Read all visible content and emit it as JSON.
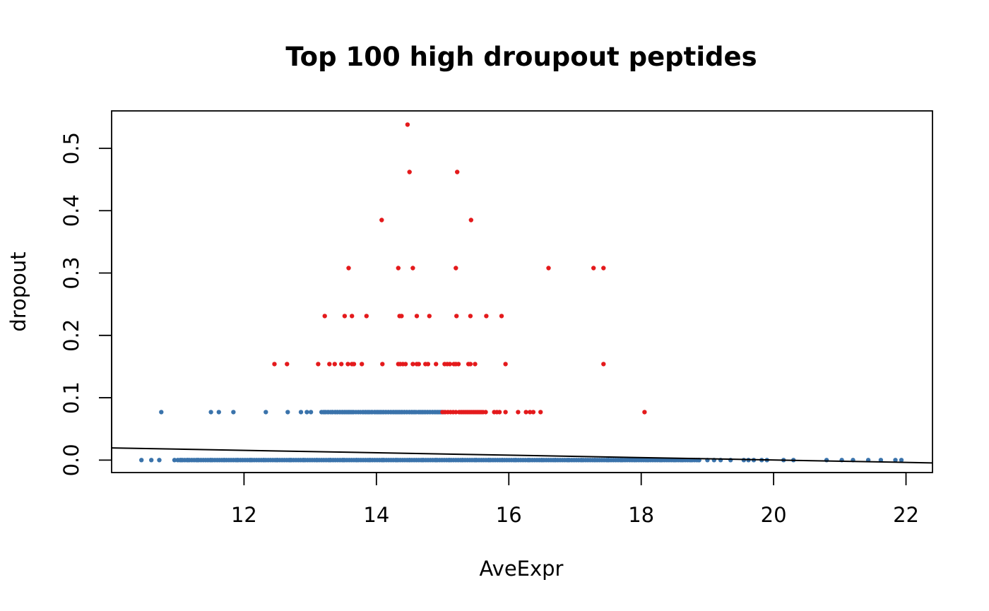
{
  "chart_data": {
    "type": "scatter",
    "title": "Top 100 high droupout peptides",
    "xlabel": "AveExpr",
    "ylabel": "dropout",
    "xlim": [
      10.0,
      22.4
    ],
    "ylim": [
      -0.02,
      0.56
    ],
    "xticks": [
      12,
      14,
      16,
      18,
      20,
      22
    ],
    "xtick_labels": [
      "12",
      "14",
      "16",
      "18",
      "20",
      "22"
    ],
    "yticks": [
      0.0,
      0.1,
      0.2,
      0.3,
      0.4,
      0.5
    ],
    "ytick_labels": [
      "0.0",
      "0.1",
      "0.2",
      "0.3",
      "0.4",
      "0.5"
    ],
    "grid": false,
    "colors": {
      "background": "#blue",
      "high": "#E41A1C",
      "low": "#3A73AB",
      "line": "#000000"
    },
    "trend_line": {
      "x": [
        10.0,
        22.4
      ],
      "y": [
        0.0195,
        -0.0045
      ]
    },
    "series": [
      {
        "color": "#E41A1C",
        "x": [
          14.47,
          14.5,
          15.22,
          14.08,
          15.43,
          13.58,
          14.33,
          14.55,
          15.2,
          16.6,
          17.28,
          17.43,
          13.22,
          13.52,
          13.63,
          13.85,
          14.35,
          14.38,
          14.61,
          14.8,
          15.21,
          15.42,
          15.66,
          15.89,
          12.46,
          12.65,
          13.12,
          13.29,
          13.37,
          13.47,
          13.57,
          13.63,
          13.66,
          13.78,
          14.09,
          14.33,
          14.36,
          14.4,
          14.44,
          14.55,
          14.61,
          14.64,
          14.74,
          14.78,
          14.9,
          15.03,
          15.07,
          15.11,
          15.17,
          15.2,
          15.24,
          15.39,
          15.42,
          15.49,
          15.95,
          17.43,
          15.0,
          15.04,
          15.08,
          15.12,
          15.16,
          15.2,
          15.25,
          15.28,
          15.31,
          15.34,
          15.37,
          15.4,
          15.43,
          15.46,
          15.49,
          15.52,
          15.55,
          15.58,
          15.61,
          15.65,
          15.78,
          15.82,
          15.86,
          15.95,
          16.14,
          16.26,
          16.32,
          16.37,
          16.48,
          18.05
        ],
        "y": [
          0.538,
          0.462,
          0.462,
          0.385,
          0.385,
          0.308,
          0.308,
          0.308,
          0.308,
          0.308,
          0.308,
          0.308,
          0.231,
          0.231,
          0.231,
          0.231,
          0.231,
          0.231,
          0.231,
          0.231,
          0.231,
          0.231,
          0.231,
          0.231,
          0.154,
          0.154,
          0.154,
          0.154,
          0.154,
          0.154,
          0.154,
          0.154,
          0.154,
          0.154,
          0.154,
          0.154,
          0.154,
          0.154,
          0.154,
          0.154,
          0.154,
          0.154,
          0.154,
          0.154,
          0.154,
          0.154,
          0.154,
          0.154,
          0.154,
          0.154,
          0.154,
          0.154,
          0.154,
          0.154,
          0.154,
          0.154,
          0.077,
          0.077,
          0.077,
          0.077,
          0.077,
          0.077,
          0.077,
          0.077,
          0.077,
          0.077,
          0.077,
          0.077,
          0.077,
          0.077,
          0.077,
          0.077,
          0.077,
          0.077,
          0.077,
          0.077,
          0.077,
          0.077,
          0.077,
          0.077,
          0.077,
          0.077,
          0.077,
          0.077,
          0.077,
          0.077
        ]
      },
      {
        "color": "#3A73AB",
        "x": [
          10.75,
          11.5,
          11.62,
          11.84,
          12.33,
          12.66,
          12.86,
          12.95,
          13.01,
          13.17,
          13.22,
          13.27,
          13.33,
          13.38,
          13.41,
          13.45,
          13.49,
          13.53,
          13.57,
          13.6,
          13.64,
          13.8,
          13.84,
          13.88,
          13.93,
          13.98,
          14.02,
          14.06,
          14.1,
          14.14,
          14.18,
          14.22,
          14.26,
          14.3,
          14.34,
          14.38,
          14.42,
          14.46,
          14.5,
          14.54,
          14.58,
          14.65,
          14.69,
          14.73,
          14.77,
          14.81,
          14.85,
          14.89,
          14.93,
          14.97,
          10.45,
          10.6,
          10.72,
          10.95,
          11.05,
          11.15,
          11.3,
          11.5,
          11.7,
          11.9,
          12.1,
          12.3,
          12.5,
          12.7,
          12.9,
          13.1,
          13.3,
          13.5,
          13.7,
          13.9,
          14.1,
          14.3,
          14.5,
          14.7,
          14.9,
          15.1,
          15.3,
          15.5,
          15.7,
          15.9,
          16.1,
          16.3,
          16.5,
          16.7,
          16.9,
          17.1,
          17.3,
          17.5,
          17.7,
          17.9,
          18.1,
          18.3,
          18.5,
          18.62,
          18.75,
          18.87,
          19.0,
          19.1,
          19.2,
          19.35,
          19.55,
          19.62,
          19.7,
          19.82,
          19.9,
          20.15,
          20.3,
          20.8,
          21.03,
          21.2,
          21.43,
          21.62,
          21.84,
          21.93
        ],
        "y": [
          0.077,
          0.077,
          0.077,
          0.077,
          0.077,
          0.077,
          0.077,
          0.077,
          0.077,
          0.077,
          0.077,
          0.077,
          0.077,
          0.077,
          0.077,
          0.077,
          0.077,
          0.077,
          0.077,
          0.077,
          0.077,
          0.077,
          0.077,
          0.077,
          0.077,
          0.077,
          0.077,
          0.077,
          0.077,
          0.077,
          0.077,
          0.077,
          0.077,
          0.077,
          0.077,
          0.077,
          0.077,
          0.077,
          0.077,
          0.077,
          0.077,
          0.077,
          0.077,
          0.077,
          0.077,
          0.077,
          0.077,
          0.077,
          0.077,
          0.077,
          0,
          0,
          0,
          0,
          0,
          0,
          0,
          0,
          0,
          0,
          0,
          0,
          0,
          0,
          0,
          0,
          0,
          0,
          0,
          0,
          0,
          0,
          0,
          0,
          0,
          0,
          0,
          0,
          0,
          0,
          0,
          0,
          0,
          0,
          0,
          0,
          0,
          0,
          0,
          0,
          0,
          0,
          0,
          0,
          0,
          0,
          0,
          0,
          0,
          0,
          0,
          0,
          0,
          0,
          0,
          0,
          0,
          0,
          0,
          0,
          0,
          0,
          0,
          0
        ],
        "dense_segments": [
          {
            "x": [
              11.0,
              18.9
            ],
            "y": 0
          },
          {
            "x": [
              13.2,
              15.05
            ],
            "y": 0.077
          }
        ]
      }
    ]
  }
}
